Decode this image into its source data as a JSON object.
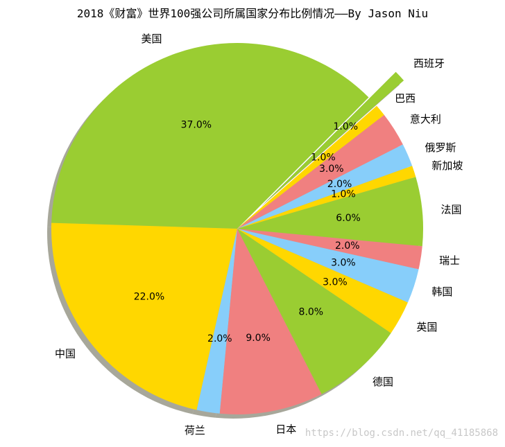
{
  "chart_data": {
    "type": "pie",
    "title": "2018《财富》世界100强公司所属国家分布比例情况——By Jason Niu",
    "categories": [
      "美国",
      "中国",
      "荷兰",
      "日本",
      "德国",
      "英国",
      "韩国",
      "瑞士",
      "法国",
      "新加坡",
      "俄罗斯",
      "意大利",
      "巴西",
      "西班牙"
    ],
    "values": [
      37.0,
      22.0,
      2.0,
      9.0,
      8.0,
      3.0,
      3.0,
      2.0,
      6.0,
      1.0,
      2.0,
      3.0,
      1.0,
      1.0
    ],
    "value_labels": [
      "37.0%",
      "22.0%",
      "2.0%",
      "9.0%",
      "8.0%",
      "3.0%",
      "3.0%",
      "2.0%",
      "6.0%",
      "1.0%",
      "2.0%",
      "3.0%",
      "1.0%",
      "1.0%"
    ],
    "colors": [
      "#9acd32",
      "#ffd700",
      "#87cefa",
      "#f08080",
      "#9acd32",
      "#ffd700",
      "#87cefa",
      "#f08080",
      "#9acd32",
      "#ffd700",
      "#87cefa",
      "#f08080",
      "#ffd700",
      "#9acd32"
    ],
    "exploded": [
      "西班牙"
    ],
    "shadow": true,
    "legend": "none"
  },
  "watermark": "https://blog.csdn.net/qq_41185868"
}
